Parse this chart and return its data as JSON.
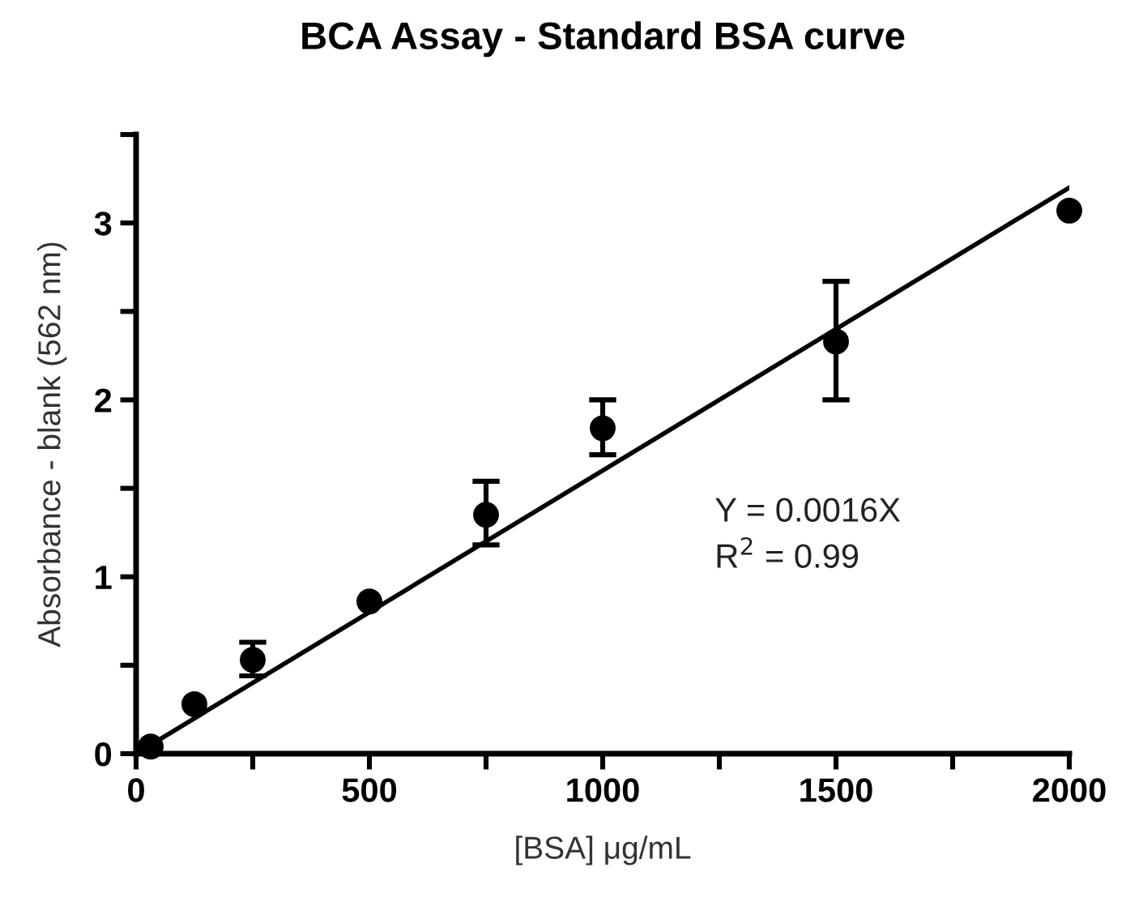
{
  "chart_data": {
    "type": "scatter",
    "title": "BCA Assay - Standard BSA curve",
    "xlabel": "[BSA] μg/mL",
    "ylabel": "Absorbance - blank (562 nm)",
    "series": [
      {
        "color": "#000000",
        "x": [
          31.25,
          125,
          250,
          500,
          750,
          1000,
          1500,
          2000
        ],
        "values": [
          0.04,
          0.28,
          0.53,
          0.86,
          1.35,
          1.84,
          2.33,
          3.07
        ],
        "errors": [
          null,
          null,
          [
            0.44,
            0.63
          ],
          null,
          [
            1.18,
            1.54
          ],
          [
            1.69,
            2.0
          ],
          [
            2.0,
            2.67
          ],
          null
        ],
        "marker": "circle"
      },
      {
        "type": "line",
        "color": "#000000",
        "x": [
          31.25,
          2000
        ],
        "values": [
          0.05,
          3.2
        ]
      }
    ],
    "annotations": [
      "Y = 0.0016X",
      "R$^{2}$ = 0.99"
    ],
    "xlim": [
      0,
      2000
    ],
    "xticks": [
      0,
      {
        "value": 250,
        "label": null
      },
      500,
      {
        "value": 750,
        "label": null
      },
      1000,
      {
        "value": 1250,
        "label": null
      },
      1500,
      {
        "value": 1750,
        "label": null
      },
      2000
    ],
    "ylim": [
      0,
      3.5
    ],
    "yticks": [
      0,
      {
        "value": 0.5,
        "label": null
      },
      1,
      {
        "value": 1.5,
        "label": null
      },
      2,
      {
        "value": 2.5,
        "label": null
      },
      3,
      {
        "value": 3.5,
        "label": null
      }
    ],
    "grid": false,
    "legend": false
  }
}
